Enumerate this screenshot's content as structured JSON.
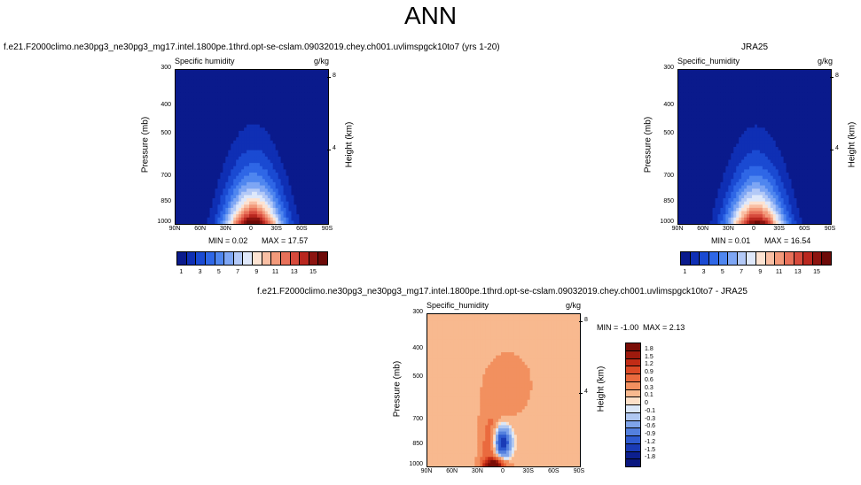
{
  "main_title": "ANN",
  "chart_data": [
    {
      "type": "heatmap",
      "title": "f.e21.F2000climo.ne30pg3_ne30pg3_mg17.intel.1800pe.1thrd.opt-se-cslam.09032019.chey.ch001.uvlimspgck10to7 (yrs 1-20)",
      "subtitle_left": "Specific humidity",
      "subtitle_right": "g/kg",
      "ylabel": "Pressure (mb)",
      "ylabel_right": "Height (km)",
      "x_ticks": [
        "90N",
        "60N",
        "30N",
        "0",
        "30S",
        "60S",
        "90S"
      ],
      "y_ticks": [
        "300",
        "400",
        "500",
        "700",
        "850",
        "1000"
      ],
      "y_ticks_right": [
        "8",
        "4"
      ],
      "ylim": [
        1000,
        300
      ],
      "min_label": "MIN =  0.02",
      "max_label": "MAX =  17.57",
      "colorbar_labels": [
        "1",
        "3",
        "5",
        "7",
        "9",
        "11",
        "13",
        "15"
      ],
      "peak": 17.57
    },
    {
      "type": "heatmap",
      "title": "JRA25",
      "subtitle_left": "Specific_humidity",
      "subtitle_right": "g/kg",
      "ylabel": "Pressure (mb)",
      "ylabel_right": "Height (km)",
      "x_ticks": [
        "90N",
        "60N",
        "30N",
        "0",
        "30S",
        "60S",
        "90S"
      ],
      "y_ticks": [
        "300",
        "400",
        "500",
        "700",
        "850",
        "1000"
      ],
      "y_ticks_right": [
        "8",
        "4"
      ],
      "ylim": [
        1000,
        300
      ],
      "min_label": "MIN =  0.01",
      "max_label": "MAX =  16.54",
      "colorbar_labels": [
        "1",
        "3",
        "5",
        "7",
        "9",
        "11",
        "13",
        "15"
      ],
      "peak": 16.54
    },
    {
      "type": "heatmap",
      "title": "f.e21.F2000climo.ne30pg3_ne30pg3_mg17.intel.1800pe.1thrd.opt-se-cslam.09032019.chey.ch001.uvlimspgck10to7 - JRA25",
      "subtitle_left": "Specific_humidity",
      "subtitle_right": "g/kg",
      "ylabel": "Pressure (mb)",
      "ylabel_right": "Height (km)",
      "x_ticks": [
        "90N",
        "60N",
        "30N",
        "0",
        "30S",
        "60S",
        "90S"
      ],
      "y_ticks": [
        "300",
        "400",
        "500",
        "700",
        "850",
        "1000"
      ],
      "y_ticks_right": [
        "8",
        "4"
      ],
      "ylim": [
        1000,
        300
      ],
      "min_label": "MIN = -1.00",
      "max_label": "MAX =  2.13",
      "colorbar_labels": [
        "1.8",
        "1.5",
        "1.2",
        "0.9",
        "0.6",
        "0.3",
        "0.1",
        "0",
        "-0.1",
        "-0.3",
        "-0.6",
        "-0.9",
        "-1.2",
        "-1.5",
        "-1.8"
      ]
    }
  ],
  "colors": {
    "abs_scale": [
      "#0a1a8c",
      "#0f2fb4",
      "#1a4ad2",
      "#2f67e6",
      "#4f86ef",
      "#7ea6f4",
      "#b3c9f7",
      "#dfe8fa",
      "#fde3d2",
      "#f9bfa4",
      "#f39a7b",
      "#e8715a",
      "#d64a3c",
      "#b9271f",
      "#8c1410",
      "#6d0a08"
    ],
    "diff_scale": [
      "#7a0d06",
      "#9e1a0d",
      "#c22c16",
      "#dc4a26",
      "#ea6a3e",
      "#f2905f",
      "#f8b98f",
      "#fde0c8",
      "#dbe7f8",
      "#b0c8f2",
      "#7fa4ea",
      "#5480de",
      "#2f5bd0",
      "#1a3bb6",
      "#0c1f8f"
    ]
  }
}
